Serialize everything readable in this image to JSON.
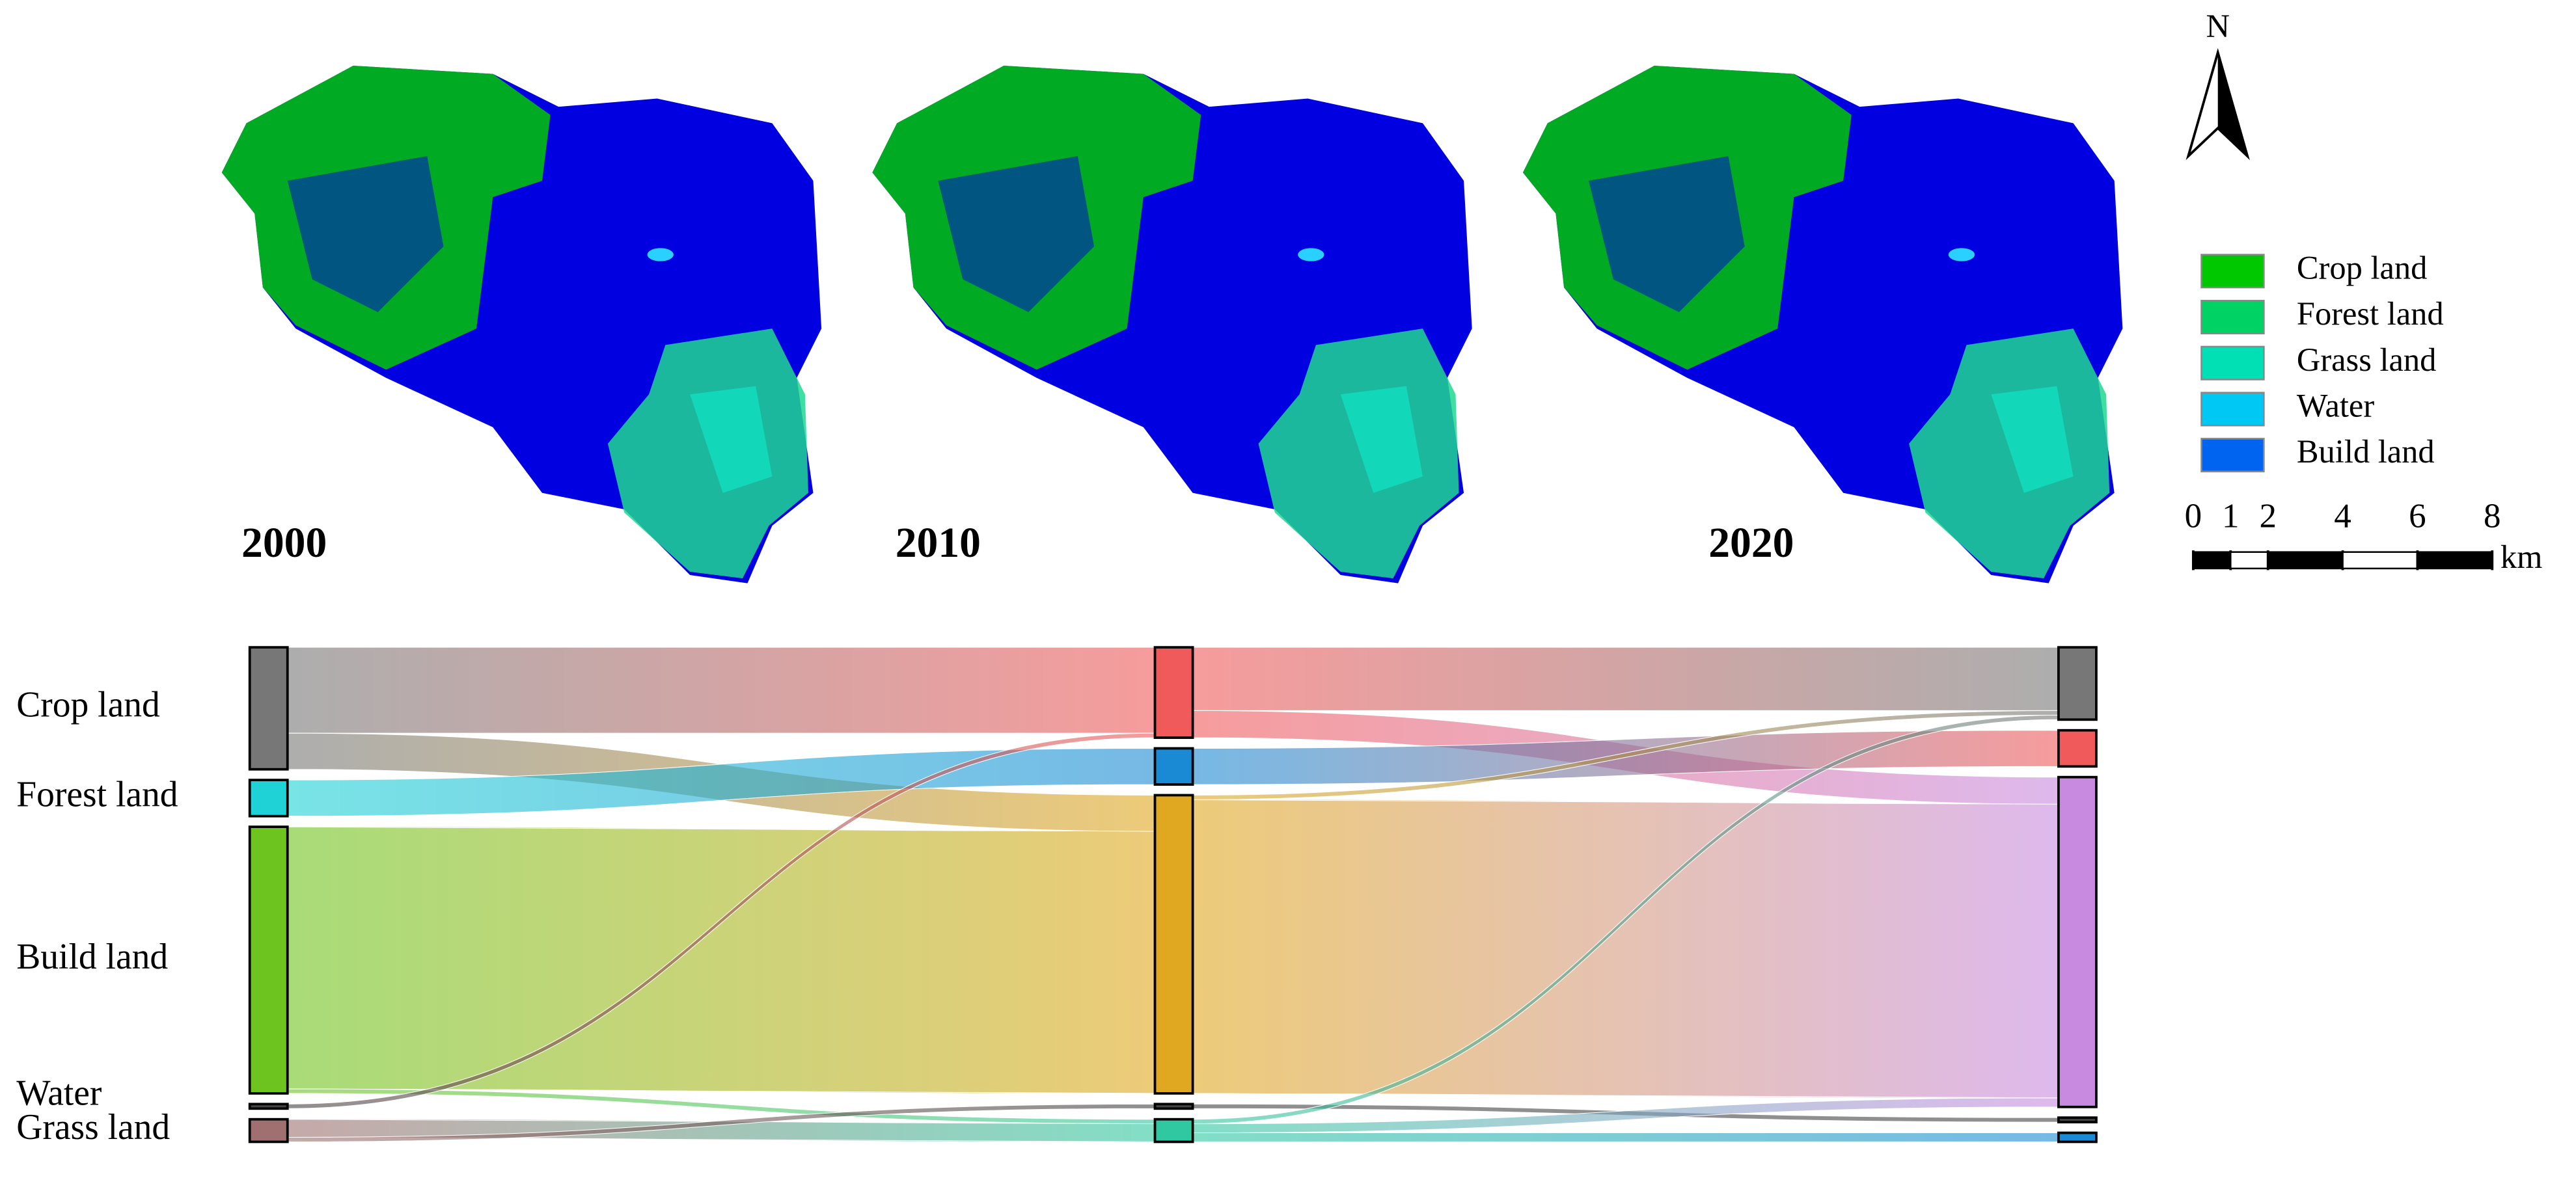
{
  "maps": {
    "years": [
      "2000",
      "2010",
      "2020"
    ],
    "north": "N",
    "legend": [
      {
        "label": "Crop land",
        "color": "#00c800"
      },
      {
        "label": "Forest land",
        "color": "#00d264"
      },
      {
        "label": "Grass land",
        "color": "#00e0b4"
      },
      {
        "label": "Water",
        "color": "#00c8f5"
      },
      {
        "label": "Build land",
        "color": "#0064f0"
      }
    ],
    "scale": {
      "ticks": [
        0,
        1,
        2,
        4,
        6,
        8
      ],
      "unit": "km"
    }
  },
  "chart_data": {
    "type": "sankey",
    "labels": [
      "Crop land",
      "Forest land",
      "Build land",
      "Water",
      "Grass land"
    ],
    "node_colors": [
      [
        "#777777",
        "#1ed2d6",
        "#6ec41e",
        "#444444",
        "#a07070"
      ],
      [
        "#f05a5a",
        "#1a8ad4",
        "#e0a820",
        "#444444",
        "#30c8a0"
      ],
      [
        "#777777",
        "#f05a5a",
        "#c88ae0",
        "#444444",
        "#1a8ad4"
      ]
    ],
    "links": [
      {
        "source": [
          0,
          0
        ],
        "target": [
          1,
          0
        ],
        "value": 19
      },
      {
        "source": [
          0,
          0
        ],
        "target": [
          1,
          2
        ],
        "value": 8
      },
      {
        "source": [
          0,
          1
        ],
        "target": [
          1,
          1
        ],
        "value": 8
      },
      {
        "source": [
          0,
          2
        ],
        "target": [
          1,
          2
        ],
        "value": 58
      },
      {
        "source": [
          0,
          2
        ],
        "target": [
          1,
          4
        ],
        "value": 1
      },
      {
        "source": [
          0,
          3
        ],
        "target": [
          1,
          0
        ],
        "value": 1
      },
      {
        "source": [
          0,
          4
        ],
        "target": [
          1,
          4
        ],
        "value": 4
      },
      {
        "source": [
          0,
          4
        ],
        "target": [
          1,
          3
        ],
        "value": 1
      },
      {
        "source": [
          1,
          0
        ],
        "target": [
          2,
          0
        ],
        "value": 14
      },
      {
        "source": [
          1,
          0
        ],
        "target": [
          2,
          2
        ],
        "value": 6
      },
      {
        "source": [
          1,
          1
        ],
        "target": [
          2,
          1
        ],
        "value": 8
      },
      {
        "source": [
          1,
          2
        ],
        "target": [
          2,
          0
        ],
        "value": 1
      },
      {
        "source": [
          1,
          2
        ],
        "target": [
          2,
          2
        ],
        "value": 65
      },
      {
        "source": [
          1,
          3
        ],
        "target": [
          2,
          3
        ],
        "value": 1
      },
      {
        "source": [
          1,
          4
        ],
        "target": [
          2,
          0
        ],
        "value": 1
      },
      {
        "source": [
          1,
          4
        ],
        "target": [
          2,
          2
        ],
        "value": 2
      },
      {
        "source": [
          1,
          4
        ],
        "target": [
          2,
          4
        ],
        "value": 2
      }
    ]
  }
}
